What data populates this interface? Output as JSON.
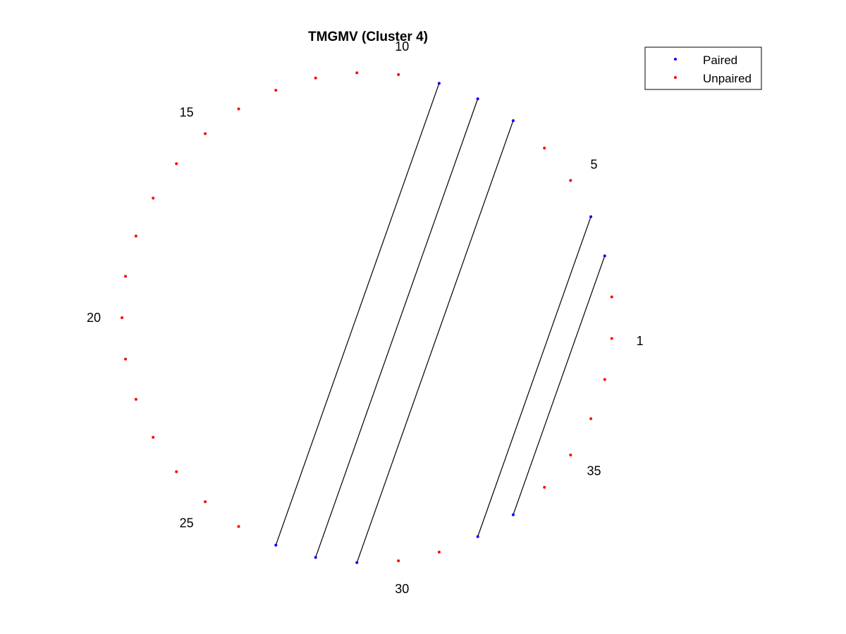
{
  "chart_data": {
    "type": "scatter",
    "title": "TMGMV (Cluster 4)",
    "layout": "circular",
    "n_positions": 37,
    "position_labels": [
      1,
      5,
      10,
      15,
      20,
      25,
      30,
      35
    ],
    "paired_positions": [
      3,
      4,
      7,
      8,
      9,
      27,
      28,
      29,
      32,
      33
    ],
    "pairs": [
      [
        3,
        33
      ],
      [
        4,
        32
      ],
      [
        7,
        29
      ],
      [
        8,
        28
      ],
      [
        9,
        27
      ]
    ],
    "legend": {
      "location": "top-right",
      "entries": [
        {
          "label": "Paired",
          "color": "#0000ff"
        },
        {
          "label": "Unpaired",
          "color": "#ff0000"
        }
      ]
    },
    "colors": {
      "paired": "#0000ff",
      "unpaired": "#ff0000",
      "link": "#000000"
    },
    "grid": false,
    "axes_visible": false
  }
}
